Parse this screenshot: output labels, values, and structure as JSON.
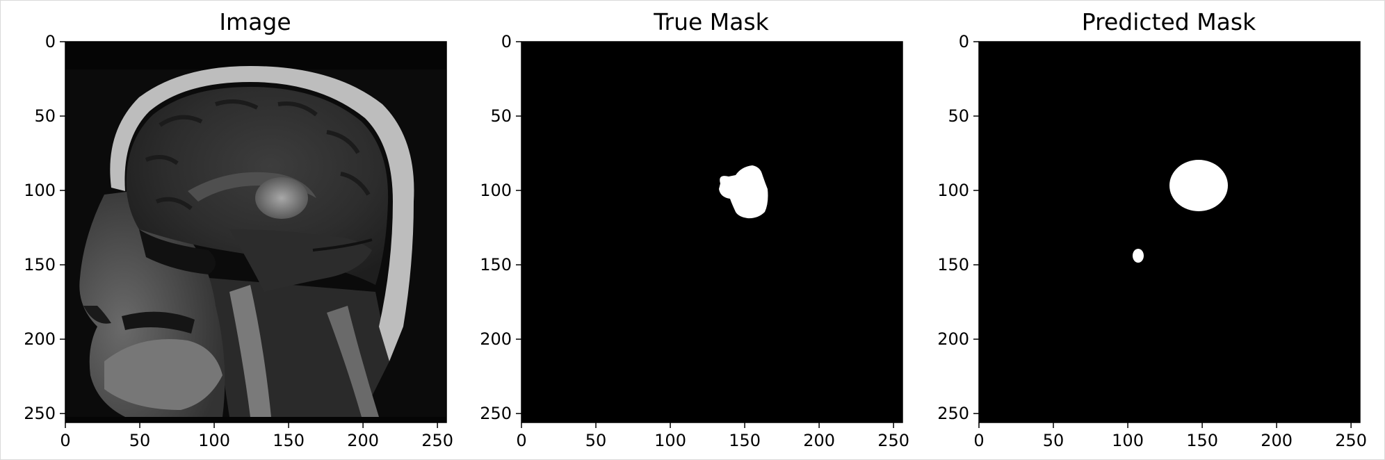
{
  "figure": {
    "panels": [
      {
        "id": "image",
        "title": "Image",
        "content": "mri-sagittal-head",
        "x_ticks": [
          "0",
          "50",
          "100",
          "150",
          "200",
          "250"
        ],
        "y_ticks": [
          "0",
          "50",
          "100",
          "150",
          "200",
          "250"
        ]
      },
      {
        "id": "true-mask",
        "title": "True Mask",
        "content": "binary-mask",
        "x_ticks": [
          "0",
          "50",
          "100",
          "150",
          "200",
          "250"
        ],
        "y_ticks": [
          "0",
          "50",
          "100",
          "150",
          "200",
          "250"
        ]
      },
      {
        "id": "predicted-mask",
        "title": "Predicted Mask",
        "content": "binary-mask",
        "x_ticks": [
          "0",
          "50",
          "100",
          "150",
          "200",
          "250"
        ],
        "y_ticks": [
          "0",
          "50",
          "100",
          "150",
          "200",
          "250"
        ]
      }
    ],
    "colors": {
      "background": "#ffffff",
      "image_background": "#000000",
      "mask_foreground": "#ffffff",
      "axis": "#000000"
    }
  }
}
